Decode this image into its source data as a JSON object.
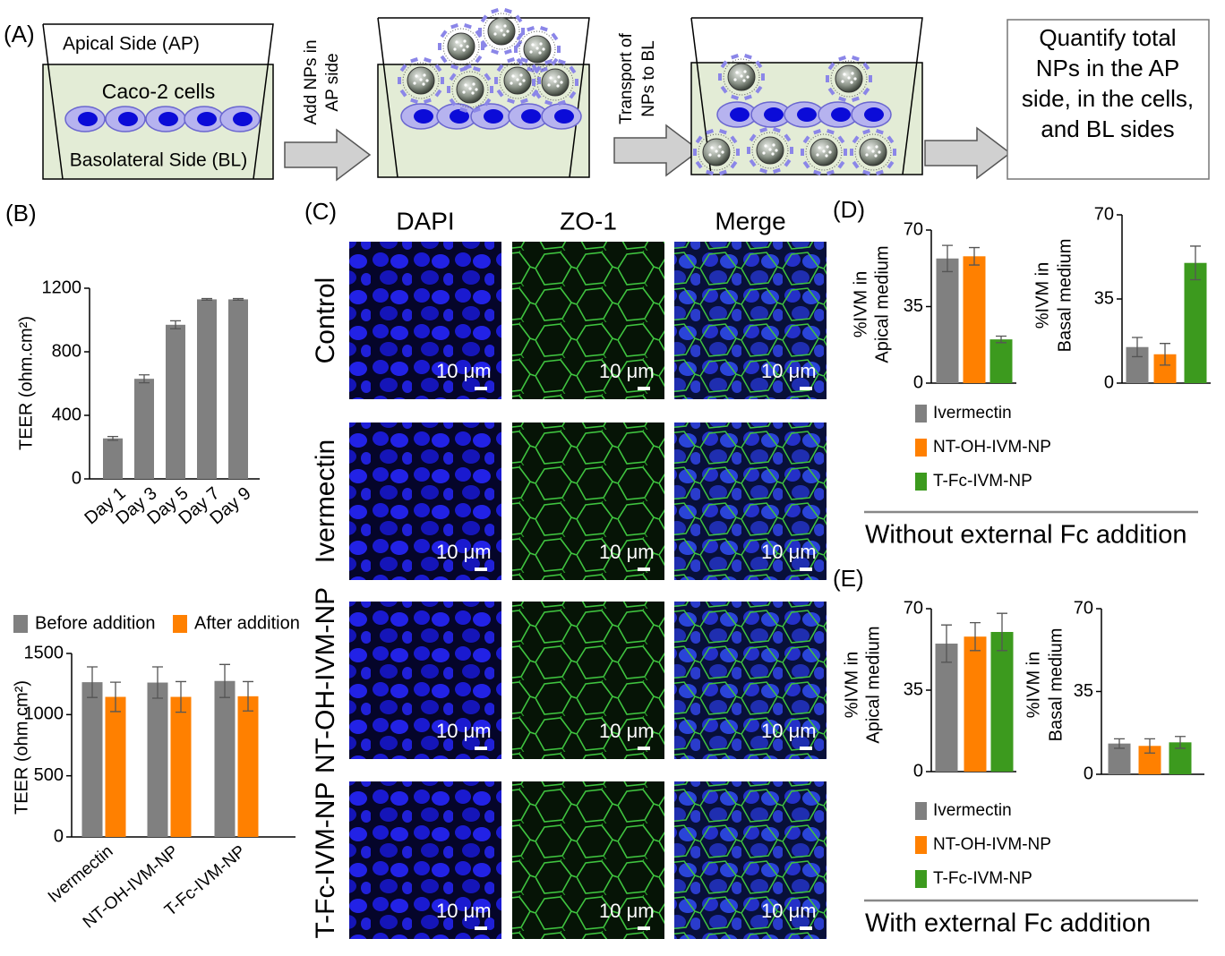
{
  "panel_a": {
    "label": "(A)",
    "apical": "Apical Side (AP)",
    "cells": "Caco-2 cells",
    "basolateral": "Basolateral Side (BL)",
    "step1": [
      "Add NPs in",
      "AP side"
    ],
    "step2": [
      "Transport of",
      "NPs to BL"
    ],
    "result": [
      "Quantify total",
      "NPs in the AP",
      "side, in the cells,",
      "and BL sides"
    ]
  },
  "panel_b": {
    "label": "(B)"
  },
  "panel_c": {
    "label": "(C)",
    "columns": [
      "DAPI",
      "ZO-1",
      "Merge"
    ],
    "rows": [
      "Control",
      "Ivermectin",
      "NT-OH-IVM-NP",
      "T-Fc-IVM-NP"
    ],
    "scale_bar": "10 μm"
  },
  "panel_d": {
    "label": "(D)",
    "legend": [
      "Ivermectin",
      "NT-OH-IVM-NP",
      "T-Fc-IVM-NP"
    ],
    "caption": "Without external Fc addition"
  },
  "panel_e": {
    "label": "(E)",
    "legend": [
      "Ivermectin",
      "NT-OH-IVM-NP",
      "T-Fc-IVM-NP"
    ],
    "caption": "With external Fc addition"
  },
  "chart_data": [
    {
      "type": "bar",
      "ylabel": "TEER (ohm.cm²)",
      "categories": [
        "Day 1",
        "Day 3",
        "Day 5",
        "Day 7",
        "Day 9"
      ],
      "values": [
        255,
        630,
        970,
        1130,
        1130
      ],
      "errors": [
        12,
        25,
        25,
        5,
        5
      ],
      "color": "#808080",
      "ylim": [
        0,
        1200
      ],
      "yticks": [
        0,
        400,
        800,
        1200
      ]
    },
    {
      "type": "bar",
      "ylabel": "TEER (ohm.cm²)",
      "categories": [
        "Ivermectin",
        "NT-OH-IVM-NP",
        "T-Fc-IVM-NP"
      ],
      "series": [
        {
          "name": "Before addition",
          "color": "#808080",
          "values": [
            1265,
            1262,
            1275
          ],
          "errors": [
            125,
            128,
            135
          ]
        },
        {
          "name": "After addition",
          "color": "#ff8000",
          "values": [
            1145,
            1145,
            1150
          ],
          "errors": [
            120,
            125,
            120
          ]
        }
      ],
      "legend": "top",
      "ylim": [
        0,
        1500
      ],
      "yticks": [
        0,
        500,
        1000,
        1500
      ]
    },
    {
      "type": "bar",
      "ylabel": [
        "%IVM in",
        "Apical medium"
      ],
      "values": [
        57,
        58,
        20
      ],
      "errors": [
        6,
        4,
        1.5
      ],
      "colors": [
        "#808080",
        "#ff8000",
        "#3c9a1e"
      ],
      "ylim": [
        0,
        70
      ],
      "yticks": [
        0,
        35,
        70
      ]
    },
    {
      "type": "bar",
      "ylabel": [
        "%IVM in",
        "Basal medium"
      ],
      "values": [
        15,
        12,
        50
      ],
      "errors": [
        4,
        4.5,
        7
      ],
      "colors": [
        "#808080",
        "#ff8000",
        "#3c9a1e"
      ],
      "ylim": [
        0,
        70
      ],
      "yticks": [
        0,
        35,
        70
      ]
    },
    {
      "type": "bar",
      "ylabel": [
        "%IVM in",
        "Apical medium"
      ],
      "values": [
        55,
        58,
        60
      ],
      "errors": [
        8,
        6,
        8
      ],
      "colors": [
        "#808080",
        "#ff8000",
        "#3c9a1e"
      ],
      "ylim": [
        0,
        70
      ],
      "yticks": [
        0,
        35,
        70
      ]
    },
    {
      "type": "bar",
      "ylabel": [
        "%IVM in",
        "Basal medium"
      ],
      "values": [
        13,
        12,
        13.5
      ],
      "errors": [
        2,
        3,
        2.5
      ],
      "colors": [
        "#808080",
        "#ff8000",
        "#3c9a1e"
      ],
      "ylim": [
        0,
        70
      ],
      "yticks": [
        0,
        35,
        70
      ]
    }
  ]
}
